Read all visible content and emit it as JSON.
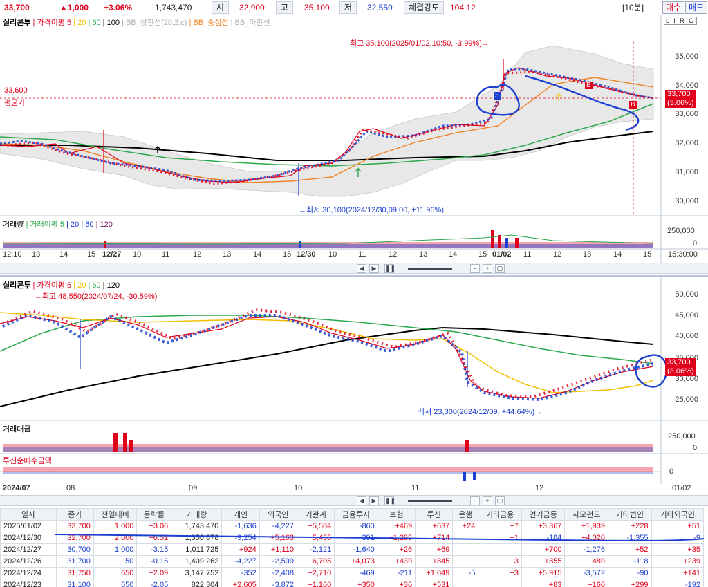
{
  "topbar": {
    "price": "33,700",
    "change": "▲1,000",
    "change_pct": "+3.06%",
    "volume": "1,743,470",
    "open_label": "시",
    "open": "32,900",
    "high_label": "고",
    "high": "35,100",
    "low_label": "저",
    "low": "32,550",
    "strength_label": "체결강도",
    "strength": "104.12",
    "interval": "[10분]",
    "buy": "매수",
    "sell": "매도"
  },
  "chart1": {
    "legend": {
      "name": "실리콘투",
      "ma_label": "가격이평",
      "ma5": "5",
      "ma20": "20",
      "ma60": "60",
      "ma100": "100",
      "bb_up": "BB_상한선(20,2,c)",
      "bb_mid": "BB_중심선",
      "bb_low": "BB_하한선"
    },
    "annotations": {
      "max": "최고 35,100(2025/01/02,10:50, -3.99%)→",
      "min": "←최저 30,100(2024/12/30,09:00, +11.96%)",
      "avg_value": "33,600",
      "avg_label": "평균가",
      "last_price": "33,700",
      "last_pct": "(3.06%)",
      "signal_s": "S",
      "signal_b": "B"
    },
    "yticks": [
      "35,000",
      "34,000",
      "33,000",
      "32,000",
      "31,000",
      "30,000"
    ],
    "panel_tag": "L I R G",
    "volume_label": "거래량",
    "volume_ma_label": "거래이평",
    "volume_ma": [
      "5",
      "20",
      "60",
      "120"
    ],
    "volume_ticks": [
      "250,000",
      "0"
    ],
    "xticks": [
      "12:10",
      "13",
      "14",
      "15",
      "12/27",
      "10",
      "11",
      "12",
      "13",
      "14",
      "15",
      "12/30",
      "10",
      "11",
      "12",
      "13",
      "14",
      "15",
      "01/02",
      "11",
      "12",
      "13",
      "14",
      "15"
    ],
    "time": "15:30:00"
  },
  "chart2": {
    "legend": {
      "name": "실리콘투",
      "ma_label": "가격이평",
      "ma5": "5",
      "ma20": "20",
      "ma60": "60",
      "ma120": "120"
    },
    "annotations": {
      "max": "←최고 48,550(2024/07/24, -30.59%)",
      "min": "최저 23,300(2024/12/09, +44.64%)→",
      "last_price": "33,700",
      "last_pct": "(3.06%)"
    },
    "yticks": [
      "50,000",
      "45,000",
      "40,000",
      "35,000",
      "30,000",
      "25,000"
    ],
    "amount_label": "거래대금",
    "amount_ticks": [
      "250,000",
      "0"
    ],
    "inst_label": "투신순매수금액",
    "inst_ticks": [
      "0"
    ],
    "xticks": [
      "2024/07",
      "08",
      "09",
      "10",
      "11",
      "12"
    ],
    "xlast": "01/02"
  },
  "table": {
    "headers": [
      "일자",
      "종가",
      "전일대비",
      "등락률",
      "거래량",
      "개인",
      "외국인",
      "기관계",
      "금융투자",
      "보험",
      "투신",
      "은행",
      "기타금융",
      "연기금등",
      "사모펀드",
      "기타법인",
      "기타외국인"
    ],
    "rows": [
      [
        "2025/01/02",
        "33,700",
        "1,000",
        "+3.06",
        "1,743,470",
        "-1,636",
        "-4,227",
        "+5,584",
        "-860",
        "+469",
        "+637",
        "+24",
        "+7",
        "+3,367",
        "+1,939",
        "+228",
        "+51"
      ],
      [
        "2024/12/30",
        "32,700",
        "2,000",
        "+6.51",
        "1,356,878",
        "-9,254",
        "+5,163",
        "+5,455",
        "-391",
        "+1,295",
        "+714",
        "",
        "+1",
        "-184",
        "+4,020",
        "-1,355",
        "-9"
      ],
      [
        "2024/12/27",
        "30,700",
        "1,000",
        "-3.15",
        "1,011,725",
        "+924",
        "+1,110",
        "-2,121",
        "-1,640",
        "+26",
        "+69",
        "",
        "",
        "+700",
        "-1,276",
        "+52",
        "+35"
      ],
      [
        "2024/12/26",
        "31,700",
        "50",
        "-0.16",
        "1,409,262",
        "-4,227",
        "-2,599",
        "+6,705",
        "+4,073",
        "+439",
        "+845",
        "",
        "+3",
        "+855",
        "+489",
        "-118",
        "+239"
      ],
      [
        "2024/12/24",
        "31,750",
        "650",
        "+2.09",
        "3,147,752",
        "-352",
        "-2,408",
        "+2,710",
        "-469",
        "-211",
        "+1,049",
        "-5",
        "+3",
        "+5,915",
        "-3,572",
        "-90",
        "+141"
      ],
      [
        "2024/12/23",
        "31,100",
        "650",
        "-2.05",
        "822,304",
        "+2,605",
        "-3,872",
        "+1,160",
        "+350",
        "+36",
        "+531",
        "",
        "",
        "+83",
        "+160",
        "+299",
        "-192"
      ]
    ]
  },
  "colors": {
    "up": "#e0001b",
    "down": "#1b3fd0",
    "ma5": "#e0001b",
    "ma20": "#f0c000",
    "ma60": "#2aa84a",
    "ma100": "#000000",
    "bb": "#b0b0b0"
  }
}
